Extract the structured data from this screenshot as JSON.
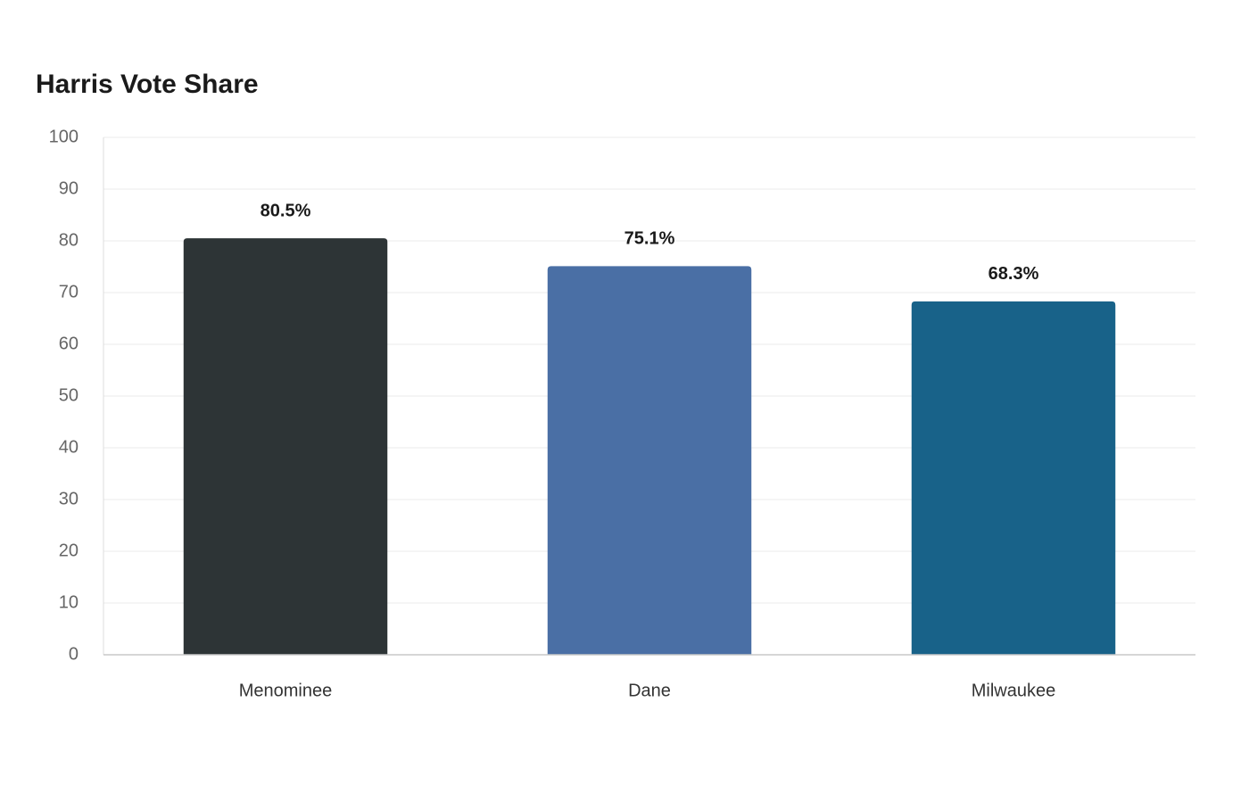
{
  "chart_data": {
    "type": "bar",
    "title": "Harris Vote Share",
    "categories": [
      "Menominee",
      "Dane",
      "Milwaukee"
    ],
    "values": [
      80.5,
      75.1,
      68.3
    ],
    "value_labels": [
      "80.5%",
      "75.1%",
      "68.3%"
    ],
    "colors": [
      "#2d3436",
      "#4a6fa5",
      "#186289"
    ],
    "ylim": [
      0,
      100
    ],
    "yticks": [
      0,
      10,
      20,
      30,
      40,
      50,
      60,
      70,
      80,
      90,
      100
    ],
    "grid": true
  }
}
